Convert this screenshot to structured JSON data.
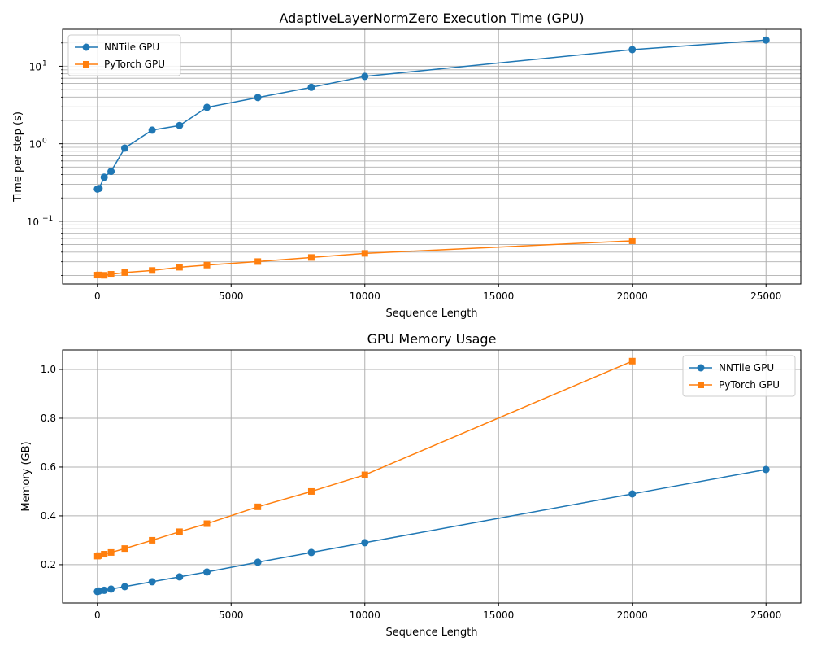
{
  "chart_data": [
    {
      "type": "line",
      "title": "AdaptiveLayerNormZero Execution Time (GPU)",
      "xlabel": "Sequence Length",
      "ylabel": "Time per step (s)",
      "yscale": "log",
      "xlim": [
        -1300,
        26300
      ],
      "ylim": [
        0.0155,
        30
      ],
      "xticks": [
        0,
        5000,
        10000,
        15000,
        20000,
        25000
      ],
      "xtick_labels": [
        "0",
        "5000",
        "10000",
        "15000",
        "20000",
        "25000"
      ],
      "ytick_labels": [
        {
          "base": "10",
          "exp": "1",
          "value": 10
        },
        {
          "base": "10",
          "exp": "0",
          "value": 1
        },
        {
          "base": "10",
          "exp": "−1",
          "value": 0.1
        }
      ],
      "grid": "both (major and minor)",
      "legend": "upper left",
      "series": [
        {
          "name": "NNTile GPU",
          "color": "#1f77b4",
          "marker": "circle",
          "x": [
            1,
            64,
            256,
            512,
            1024,
            2048,
            3072,
            4096,
            6000,
            8000,
            10000,
            20000,
            25000
          ],
          "y": [
            0.26,
            0.265,
            0.37,
            0.44,
            0.88,
            1.5,
            1.72,
            2.95,
            3.95,
            5.35,
            7.4,
            16.4,
            21.8
          ]
        },
        {
          "name": "PyTorch GPU",
          "color": "#ff7f0e",
          "marker": "square",
          "x": [
            1,
            64,
            256,
            512,
            1024,
            2048,
            3072,
            4096,
            6000,
            8000,
            10000,
            20000
          ],
          "y": [
            0.0202,
            0.0203,
            0.0201,
            0.0207,
            0.0218,
            0.0232,
            0.0255,
            0.0272,
            0.0302,
            0.0341,
            0.0385,
            0.0559
          ]
        }
      ]
    },
    {
      "type": "line",
      "title": "GPU Memory Usage",
      "xlabel": "Sequence Length",
      "ylabel": "Memory (GB)",
      "yscale": "linear",
      "xlim": [
        -1300,
        26300
      ],
      "ylim": [
        0.043,
        1.08
      ],
      "xticks": [
        0,
        5000,
        10000,
        15000,
        20000,
        25000
      ],
      "xtick_labels": [
        "0",
        "5000",
        "10000",
        "15000",
        "20000",
        "25000"
      ],
      "yticks": [
        0.2,
        0.4,
        0.6,
        0.8,
        1.0
      ],
      "ytick_labels": [
        "0.2",
        "0.4",
        "0.6",
        "0.8",
        "1.0"
      ],
      "grid": "both",
      "legend": "upper right",
      "series": [
        {
          "name": "NNTile GPU",
          "color": "#1f77b4",
          "marker": "circle",
          "x": [
            1,
            64,
            256,
            512,
            1024,
            2048,
            3072,
            4096,
            6000,
            8000,
            10000,
            20000,
            25000
          ],
          "y": [
            0.09,
            0.092,
            0.095,
            0.1,
            0.11,
            0.13,
            0.15,
            0.17,
            0.21,
            0.25,
            0.29,
            0.49,
            0.59
          ]
        },
        {
          "name": "PyTorch GPU",
          "color": "#ff7f0e",
          "marker": "square",
          "x": [
            1,
            64,
            256,
            512,
            1024,
            2048,
            3072,
            4096,
            6000,
            8000,
            10000,
            20000
          ],
          "y": [
            0.235,
            0.237,
            0.243,
            0.25,
            0.266,
            0.3,
            0.335,
            0.368,
            0.437,
            0.5,
            0.568,
            1.034
          ]
        }
      ]
    }
  ]
}
